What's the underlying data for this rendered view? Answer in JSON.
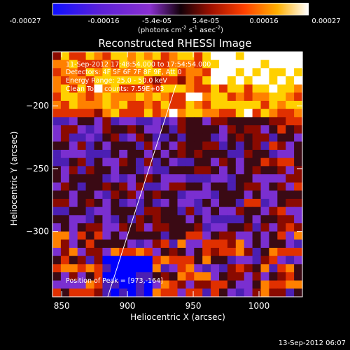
{
  "colorbar": {
    "ticks": [
      "-0.00027",
      "-0.00016",
      "-5.4e-05",
      "5.4e-05",
      "0.00016",
      "0.00027"
    ],
    "units_base": "(photons cm",
    "units_exp1": "-2",
    "units_mid1": " s",
    "units_exp2": "-1",
    "units_mid2": " asec",
    "units_exp3": "-2",
    "units_end": ")"
  },
  "annotations": {
    "time_range": "11-Sep-2012 17:48:54.000 to 17:54:54.000",
    "detectors": "Detectors: 4F 5F 6F 7F 8F 9F, Att 0",
    "energy_range": "Energy Range: 25.0 - 50.0 keV",
    "clean_counts": "Clean    Total counts: 7.59E+03",
    "peak_position": "Position of Peak = [973,-164]"
  },
  "footer": {
    "date": "13-Sep-2012 06:07"
  },
  "chart_data": {
    "type": "heatmap",
    "title": "Reconstructed RHESSI Image",
    "xlabel": "Heliocentric X (arcsec)",
    "ylabel": "Heliocentric Y (arcsec)",
    "xlim": [
      843,
      1033
    ],
    "ylim": [
      -352,
      -157
    ],
    "xticks": [
      850,
      900,
      950,
      1000
    ],
    "yticks": [
      -200,
      -250,
      -300
    ],
    "colorscale": [
      "#0000ff",
      "#4b1fb3",
      "#7a2fd0",
      "#3a0a14",
      "#8a0a00",
      "#e03000",
      "#ff8000",
      "#ffd000",
      "#ffffff"
    ],
    "value_range": [
      -0.00027,
      0.00027
    ],
    "limb_line": {
      "x": [
        885,
        937
      ],
      "y": [
        -352,
        -183
      ]
    },
    "peak": [
      973,
      -164
    ]
  }
}
